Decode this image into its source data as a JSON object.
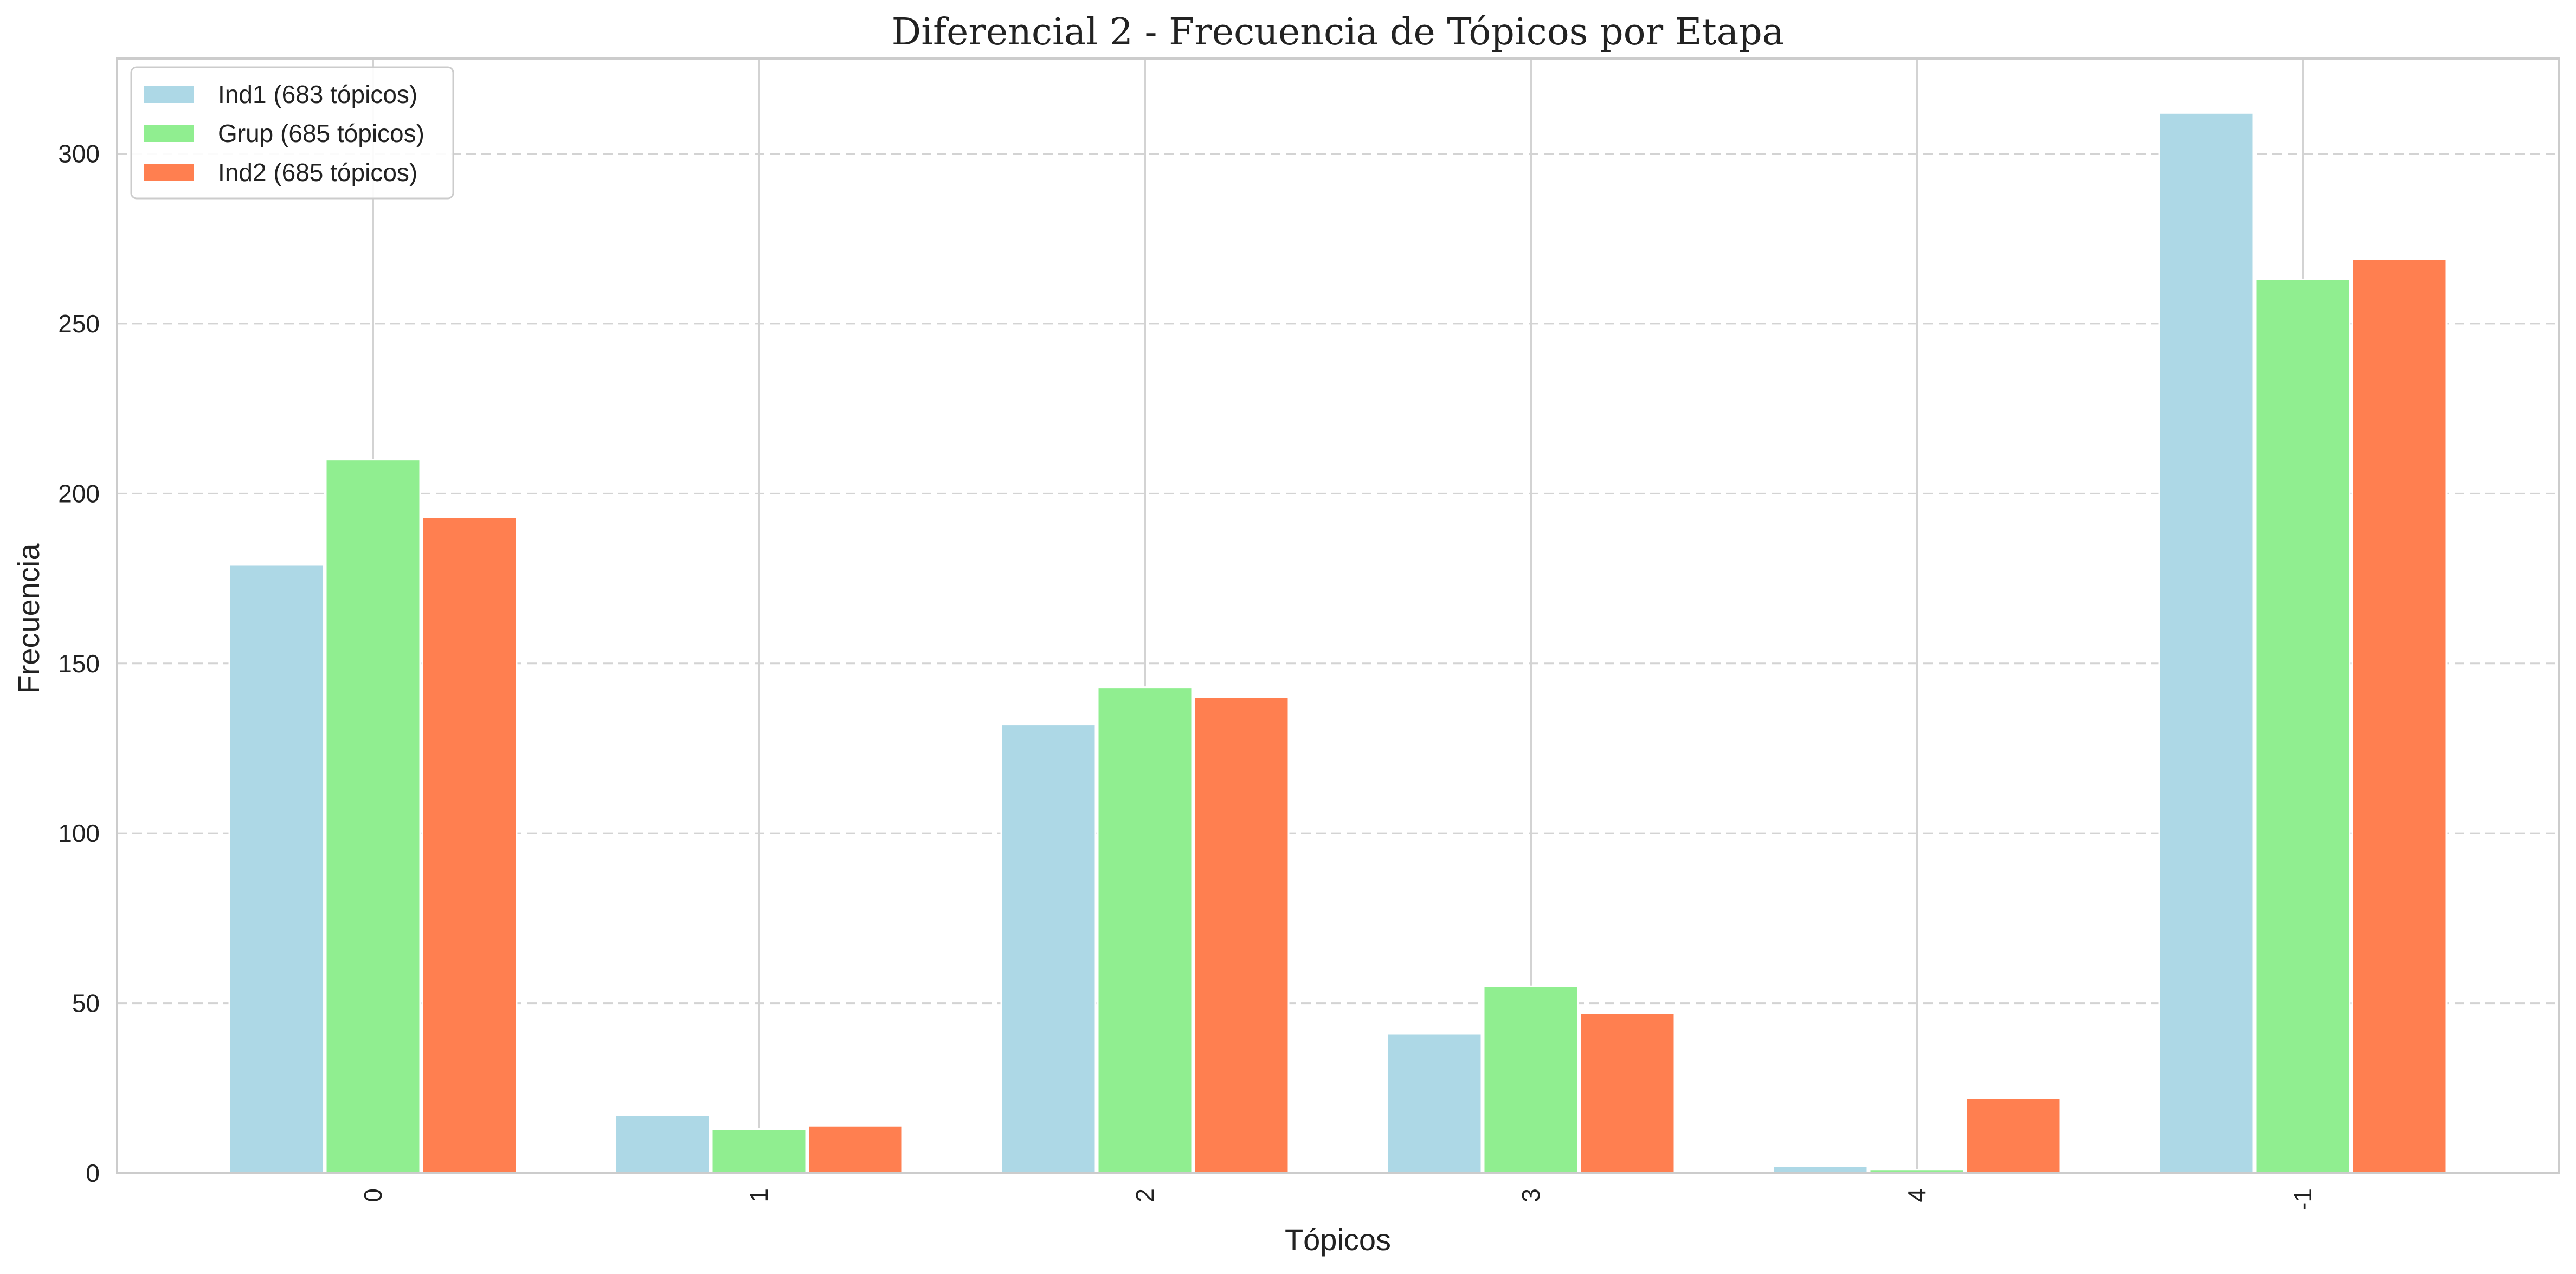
{
  "chart_data": {
    "type": "bar",
    "title": "Diferencial 2 - Frecuencia de Tópicos por Etapa",
    "xlabel": "Tópicos",
    "ylabel": "Frecuencia",
    "categories": [
      "0",
      "1",
      "2",
      "3",
      "4",
      "-1"
    ],
    "series": [
      {
        "name": "Ind1 (683 tópicos)",
        "color": "#add8e6",
        "values": [
          179,
          17,
          132,
          41,
          2,
          312
        ]
      },
      {
        "name": "Grup (685 tópicos)",
        "color": "#90ee90",
        "values": [
          210,
          13,
          143,
          55,
          1,
          263
        ]
      },
      {
        "name": "Ind2 (685 tópicos)",
        "color": "#ff7f50",
        "values": [
          193,
          14,
          140,
          47,
          22,
          269
        ]
      }
    ],
    "ylim": [
      0,
      328
    ],
    "yticks": [
      0,
      50,
      100,
      150,
      200,
      250,
      300
    ],
    "grid": {
      "horizontal": "dashed",
      "vertical": "solid"
    },
    "legend_position": "top-left",
    "xtick_rotation": 90
  }
}
